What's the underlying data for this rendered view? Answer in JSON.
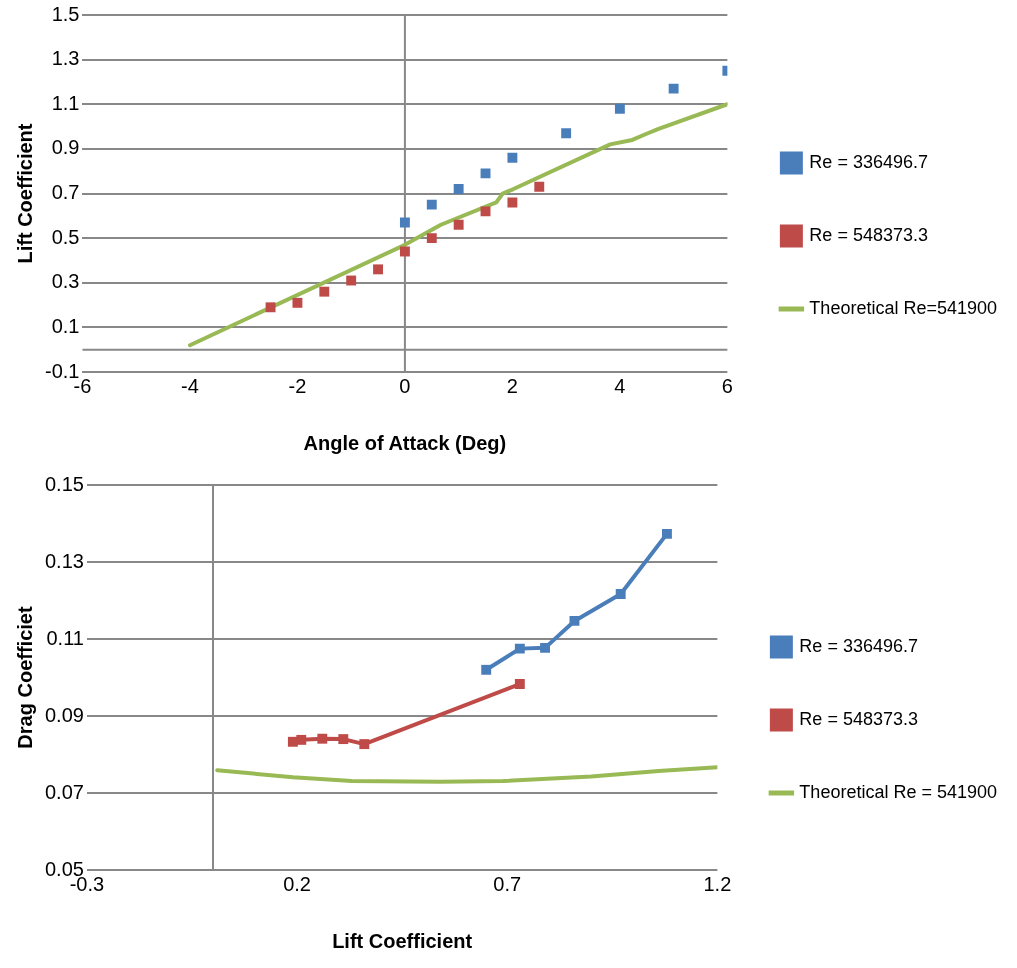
{
  "chart_data": [
    {
      "type": "scatter",
      "xlabel": "Angle of Attack (Deg)",
      "ylabel": "Lift Coefficient",
      "xlim": [
        -6,
        6
      ],
      "ylim": [
        -0.1,
        1.5
      ],
      "xticks": [
        -6,
        -4,
        -2,
        0,
        2,
        4,
        6
      ],
      "yticks": [
        -0.1,
        0.1,
        0.3,
        0.5,
        0.7,
        0.9,
        1.1,
        1.3,
        1.5
      ],
      "grid": "y",
      "legend": "right",
      "marker": "square",
      "ref_lines": [
        {
          "axis": "x",
          "value": 0,
          "color": "#888888"
        },
        {
          "axis": "y",
          "value": 0,
          "color": "#888888"
        }
      ],
      "series": [
        {
          "name": "Re = 336496.7",
          "color": "#4a7ebb",
          "x": [
            0,
            0.5,
            1,
            1.5,
            2,
            3,
            4,
            5,
            6
          ],
          "values": [
            0.57,
            0.65,
            0.72,
            0.79,
            0.86,
            0.97,
            1.08,
            1.17,
            1.25
          ]
        },
        {
          "name": "Re = 548373.3",
          "color": "#be4b48",
          "x": [
            -2.5,
            -2,
            -1.5,
            -1,
            -0.5,
            0,
            0.5,
            1,
            1.5,
            2,
            2.5
          ],
          "values": [
            0.19,
            0.21,
            0.26,
            0.31,
            0.36,
            0.44,
            0.5,
            0.56,
            0.62,
            0.66,
            0.73
          ]
        },
        {
          "name": "Theoretical Re=541900",
          "type": "line",
          "marker": "none",
          "color": "#98b954",
          "x": [
            -4,
            0,
            0.67,
            1.7,
            1.82,
            2.02,
            3.82,
            4.23,
            4.52,
            4.72,
            6
          ],
          "values": [
            0.02,
            0.47,
            0.56,
            0.66,
            0.7,
            0.72,
            0.92,
            0.94,
            0.97,
            0.99,
            1.1
          ]
        }
      ]
    },
    {
      "type": "line",
      "xlabel": "Lift Coefficient",
      "ylabel": "Drag Coefficiet",
      "xlim": [
        -0.3,
        1.2
      ],
      "ylim": [
        0.05,
        0.15
      ],
      "xticks": [
        -0.3,
        0.2,
        0.7,
        1.2
      ],
      "yticks": [
        0.05,
        0.07,
        0.09,
        0.11,
        0.13,
        0.15
      ],
      "grid": "y",
      "legend": "right",
      "marker": "square",
      "ref_lines": [
        {
          "axis": "x",
          "value": 0,
          "color": "#888888"
        }
      ],
      "series": [
        {
          "name": "Re = 336496.7",
          "color": "#4a7ebb",
          "x": [
            0.65,
            0.73,
            0.79,
            0.86,
            0.97,
            1.08
          ],
          "values": [
            0.102,
            0.1075,
            0.1077,
            0.1147,
            0.1217,
            0.1373
          ]
        },
        {
          "name": "Re = 548373.3",
          "color": "#be4b48",
          "x": [
            0.19,
            0.21,
            0.26,
            0.31,
            0.36,
            0.73
          ],
          "values": [
            0.0833,
            0.0838,
            0.0841,
            0.084,
            0.0827,
            0.0983
          ]
        },
        {
          "name": "Theoretical Re = 541900",
          "marker": "none",
          "color": "#98b954",
          "x": [
            0.01,
            0.19,
            0.33,
            0.54,
            0.69,
            0.9,
            1.06,
            1.2
          ],
          "values": [
            0.0759,
            0.0741,
            0.0731,
            0.0729,
            0.0731,
            0.0743,
            0.0757,
            0.0767
          ]
        }
      ]
    }
  ]
}
